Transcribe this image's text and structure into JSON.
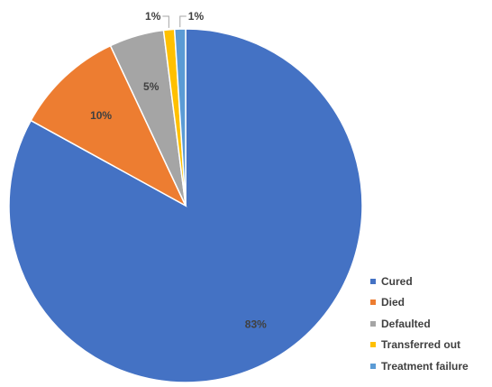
{
  "chart_data": {
    "type": "pie",
    "title": "",
    "legend_position": "bottom-right",
    "slices": [
      {
        "name": "Cured",
        "value": 83,
        "label": "83%",
        "color": "#4472C4"
      },
      {
        "name": "Died",
        "value": 10,
        "label": "10%",
        "color": "#ED7D31"
      },
      {
        "name": "Defaulted",
        "value": 5,
        "label": "5%",
        "color": "#A5A5A5"
      },
      {
        "name": "Transferred out",
        "value": 1,
        "label": "1%",
        "color": "#FFC000"
      },
      {
        "name": "Treatment failure",
        "value": 1,
        "label": "1%",
        "color": "#5B9BD5"
      }
    ]
  }
}
